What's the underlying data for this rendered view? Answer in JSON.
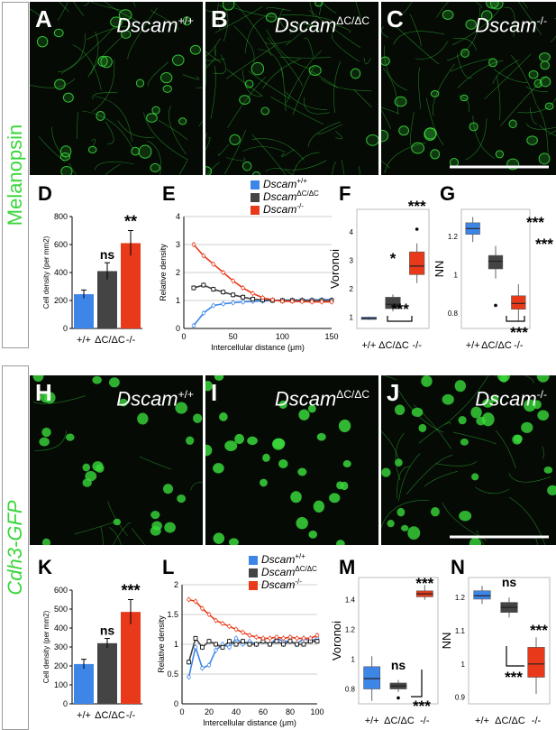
{
  "side_labels": {
    "top": "Melanopsin",
    "bottom": "Cdh3-GFP"
  },
  "image_panels": [
    {
      "letter": "A",
      "genotype_base": "Dscam",
      "genotype_sup": "+/+"
    },
    {
      "letter": "B",
      "genotype_base": "Dscam",
      "genotype_sup": "ΔC/ΔC"
    },
    {
      "letter": "C",
      "genotype_base": "Dscam",
      "genotype_sup": "-/-"
    },
    {
      "letter": "H",
      "genotype_base": "Dscam",
      "genotype_sup": "+/+"
    },
    {
      "letter": "I",
      "genotype_base": "Dscam",
      "genotype_sup": "ΔC/ΔC"
    },
    {
      "letter": "J",
      "genotype_base": "Dscam",
      "genotype_sup": "-/-"
    }
  ],
  "colors": {
    "wt": "#3d86e8",
    "dc": "#444444",
    "ko": "#e83a1a",
    "fluor": "#39d63a"
  },
  "chart_data": [
    {
      "id": "D",
      "type": "bar",
      "ylabel": "Cell density (per mm2)",
      "ylim": [
        0,
        800
      ],
      "yticks": [
        0,
        200,
        400,
        600,
        800
      ],
      "categories": [
        "+/+",
        "ΔC/ΔC",
        "-/-"
      ],
      "values": [
        245,
        410,
        610
      ],
      "errors": [
        30,
        60,
        90
      ],
      "annotations": [
        "",
        "ns",
        "**"
      ]
    },
    {
      "id": "E",
      "type": "line",
      "xlabel": "Intercellular distance (μm)",
      "ylabel": "Relative density",
      "xlim": [
        0,
        150
      ],
      "ylim": [
        0,
        4
      ],
      "xticks": [
        0,
        50,
        100,
        150
      ],
      "yticks": [
        0,
        1,
        2,
        3,
        4
      ],
      "legend": [
        "Dscam",
        "Dscam",
        "Dscam"
      ],
      "legend_sup": [
        "+/+",
        "ΔC/ΔC",
        "-/-"
      ],
      "series": [
        {
          "x": [
            10,
            20,
            30,
            40,
            50,
            60,
            70,
            80,
            90,
            100,
            110,
            120,
            130,
            140,
            150
          ],
          "values": [
            0.1,
            0.55,
            0.82,
            0.88,
            0.92,
            0.95,
            0.97,
            0.98,
            1.0,
            1.01,
            1.02,
            1.02,
            1.02,
            1.03,
            1.03
          ]
        },
        {
          "x": [
            10,
            20,
            30,
            40,
            50,
            60,
            70,
            80,
            90,
            100,
            110,
            120,
            130,
            140,
            150
          ],
          "values": [
            1.45,
            1.55,
            1.4,
            1.3,
            1.2,
            1.12,
            1.05,
            1.02,
            1.0,
            1.0,
            1.0,
            1.0,
            1.0,
            1.0,
            1.0
          ]
        },
        {
          "x": [
            10,
            20,
            30,
            40,
            50,
            60,
            70,
            80,
            90,
            100,
            110,
            120,
            130,
            140,
            150
          ],
          "values": [
            3.0,
            2.6,
            2.3,
            2.0,
            1.7,
            1.45,
            1.25,
            1.1,
            1.02,
            0.97,
            0.97,
            0.96,
            0.95,
            0.95,
            0.95
          ]
        }
      ]
    },
    {
      "id": "F",
      "type": "box",
      "ylabel": "Voronoi",
      "ylim": [
        0.6,
        4.8
      ],
      "yticks": [
        1,
        2,
        3,
        4
      ],
      "categories": [
        "+/+",
        "ΔC/ΔC",
        "-/-"
      ],
      "boxes": [
        {
          "min": 0.9,
          "q1": 0.92,
          "median": 0.95,
          "q3": 1.0,
          "max": 1.02,
          "outlier": null
        },
        {
          "min": 1.2,
          "q1": 1.3,
          "median": 1.45,
          "q3": 1.7,
          "max": 1.8,
          "outlier": null
        },
        {
          "min": 2.2,
          "q1": 2.5,
          "median": 2.8,
          "q3": 3.3,
          "max": 3.6,
          "outlier": 4.1
        }
      ],
      "annotations": [
        "",
        "*",
        "***"
      ],
      "bracket_label": "***"
    },
    {
      "id": "G",
      "type": "box",
      "ylabel": "NN",
      "ylim": [
        0.72,
        1.34
      ],
      "yticks": [
        0.8,
        1.0,
        1.2
      ],
      "categories": [
        "+/+",
        "ΔC/ΔC",
        "-/-"
      ],
      "boxes": [
        {
          "min": 1.17,
          "q1": 1.21,
          "median": 1.24,
          "q3": 1.27,
          "max": 1.3,
          "outlier": null
        },
        {
          "min": 0.98,
          "q1": 1.03,
          "median": 1.07,
          "q3": 1.1,
          "max": 1.15,
          "outlier": 0.84
        },
        {
          "min": 0.76,
          "q1": 0.82,
          "median": 0.85,
          "q3": 0.89,
          "max": 0.95,
          "outlier": null
        }
      ],
      "annotations": [
        "",
        "***",
        "***"
      ],
      "bracket_label": "***"
    },
    {
      "id": "K",
      "type": "bar",
      "ylabel": "Cell density (per mm2)",
      "ylim": [
        0,
        600
      ],
      "yticks": [
        0,
        100,
        200,
        300,
        400,
        500,
        600
      ],
      "categories": [
        "+/+",
        "ΔC/ΔC",
        "-/-"
      ],
      "values": [
        210,
        320,
        485
      ],
      "errors": [
        25,
        25,
        65
      ],
      "annotations": [
        "",
        "ns",
        "***"
      ]
    },
    {
      "id": "L",
      "type": "line",
      "xlabel": "Intercellular distance (μm)",
      "ylabel": "Relative density",
      "xlim": [
        0,
        100
      ],
      "ylim": [
        0,
        2
      ],
      "xticks": [
        0,
        20,
        40,
        60,
        80,
        100
      ],
      "yticks": [
        0,
        0.5,
        1,
        1.5,
        2
      ],
      "legend": [
        "Dscam",
        "Dscam",
        "Dscam"
      ],
      "legend_sup": [
        "+/+",
        "ΔC/ΔC",
        "-/-"
      ],
      "series": [
        {
          "x": [
            5,
            10,
            15,
            20,
            25,
            30,
            35,
            40,
            45,
            50,
            55,
            60,
            65,
            70,
            75,
            80,
            85,
            90,
            95,
            100
          ],
          "values": [
            0.45,
            0.95,
            0.6,
            0.65,
            0.9,
            1.0,
            0.95,
            1.1,
            1.0,
            1.05,
            1.0,
            1.05,
            1.0,
            1.1,
            1.05,
            1.05,
            1.0,
            1.1,
            1.05,
            1.1
          ]
        },
        {
          "x": [
            5,
            10,
            15,
            20,
            25,
            30,
            35,
            40,
            45,
            50,
            55,
            60,
            65,
            70,
            75,
            80,
            85,
            90,
            95,
            100
          ],
          "values": [
            0.7,
            1.1,
            0.95,
            1.05,
            1.0,
            0.95,
            1.05,
            1.0,
            1.05,
            1.0,
            1.0,
            1.05,
            1.0,
            1.05,
            1.0,
            1.05,
            1.0,
            1.0,
            1.05,
            1.05
          ]
        },
        {
          "x": [
            5,
            10,
            15,
            20,
            25,
            30,
            35,
            40,
            45,
            50,
            55,
            60,
            65,
            70,
            75,
            80,
            85,
            90,
            95,
            100
          ],
          "values": [
            1.75,
            1.72,
            1.6,
            1.5,
            1.4,
            1.35,
            1.3,
            1.25,
            1.2,
            1.15,
            1.12,
            1.1,
            1.1,
            1.12,
            1.1,
            1.12,
            1.1,
            1.1,
            1.1,
            1.15
          ]
        }
      ]
    },
    {
      "id": "M",
      "type": "box",
      "ylabel": "Voronoi",
      "ylim": [
        0.7,
        1.55
      ],
      "yticks": [
        0.8,
        1.0,
        1.2,
        1.4
      ],
      "categories": [
        "+/+",
        "ΔC/ΔC",
        "-/-"
      ],
      "boxes": [
        {
          "min": 0.72,
          "q1": 0.8,
          "median": 0.87,
          "q3": 0.95,
          "max": 1.02,
          "outlier": null
        },
        {
          "min": 0.78,
          "q1": 0.8,
          "median": 0.82,
          "q3": 0.84,
          "max": 0.86,
          "outlier": 0.74
        },
        {
          "min": 1.4,
          "q1": 1.42,
          "median": 1.44,
          "q3": 1.46,
          "max": 1.5,
          "outlier": null
        }
      ],
      "annotations": [
        "",
        "ns",
        "***"
      ],
      "bracket_label": "***"
    },
    {
      "id": "N",
      "type": "box",
      "ylabel": "NN",
      "ylim": [
        0.88,
        1.26
      ],
      "yticks": [
        0.9,
        1.0,
        1.1,
        1.2
      ],
      "categories": [
        "+/+",
        "ΔC/ΔC",
        "-/-"
      ],
      "boxes": [
        {
          "min": 1.18,
          "q1": 1.195,
          "median": 1.205,
          "q3": 1.22,
          "max": 1.235,
          "outlier": null
        },
        {
          "min": 1.14,
          "q1": 1.155,
          "median": 1.17,
          "q3": 1.185,
          "max": 1.2,
          "outlier": null
        },
        {
          "min": 0.91,
          "q1": 0.96,
          "median": 1.0,
          "q3": 1.05,
          "max": 1.08,
          "outlier": null
        }
      ],
      "annotations": [
        "",
        "ns",
        "***"
      ],
      "bracket_label": "***"
    }
  ],
  "chart_letters": {
    "D": "D",
    "E": "E",
    "F": "F",
    "G": "G",
    "K": "K",
    "L": "L",
    "M": "M",
    "N": "N"
  }
}
